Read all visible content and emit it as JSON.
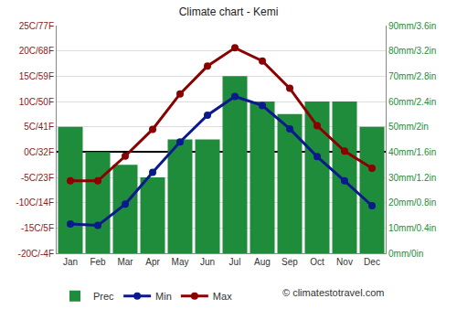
{
  "chart_data": {
    "type": "bar",
    "title": "Climate chart - Kemi",
    "categories": [
      "Jan",
      "Feb",
      "Mar",
      "Apr",
      "May",
      "Jun",
      "Jul",
      "Aug",
      "Sep",
      "Oct",
      "Nov",
      "Dec"
    ],
    "series": [
      {
        "name": "Prec",
        "type": "bar",
        "axis": "y2",
        "color": "#1e8c3a",
        "values": [
          50,
          40,
          35,
          30,
          45,
          45,
          70,
          60,
          55,
          60,
          60,
          50
        ]
      },
      {
        "name": "Min",
        "type": "line",
        "color": "#0a1a8c",
        "marker": "circle",
        "line_style": "solid",
        "values": [
          -14.2,
          -14.5,
          -10.3,
          -4,
          2,
          7.3,
          11,
          9.2,
          4.6,
          -0.9,
          -5.7,
          -10.6
        ]
      },
      {
        "name": "Max",
        "type": "line",
        "color": "#8b0000",
        "marker": "circle",
        "line_style": "solid",
        "values": [
          -5.7,
          -5.7,
          -0.8,
          4.5,
          11.5,
          17,
          20.6,
          18,
          12.6,
          5.2,
          0.2,
          -3.2
        ]
      }
    ],
    "ylim": [
      -20,
      25
    ],
    "yticks": [
      {
        "value": -20,
        "label": "-20C/-4F"
      },
      {
        "value": -15,
        "label": "-15C/5F"
      },
      {
        "value": -10,
        "label": "-10C/14F"
      },
      {
        "value": -5,
        "label": "-5C/23F"
      },
      {
        "value": 0,
        "label": "0C/32F"
      },
      {
        "value": 5,
        "label": "5C/41F"
      },
      {
        "value": 10,
        "label": "10C/50F"
      },
      {
        "value": 15,
        "label": "15C/59F"
      },
      {
        "value": 20,
        "label": "20C/68F"
      },
      {
        "value": 25,
        "label": "25C/77F"
      }
    ],
    "y2lim": [
      0,
      90
    ],
    "y2ticks": [
      {
        "value": 0,
        "label": "0mm/0in"
      },
      {
        "value": 10,
        "label": "10mm/0.4in"
      },
      {
        "value": 20,
        "label": "20mm/0.8in"
      },
      {
        "value": 30,
        "label": "30mm/1.2in"
      },
      {
        "value": 40,
        "label": "40mm/1.6in"
      },
      {
        "value": 50,
        "label": "50mm/2in"
      },
      {
        "value": 60,
        "label": "60mm/2.4in"
      },
      {
        "value": 70,
        "label": "70mm/2.8in"
      },
      {
        "value": 80,
        "label": "80mm/3.2in"
      },
      {
        "value": 90,
        "label": "90mm/3.6in"
      }
    ],
    "grid": true,
    "legend": "bottom",
    "annotations": [
      "© climatestotravel.com"
    ]
  }
}
